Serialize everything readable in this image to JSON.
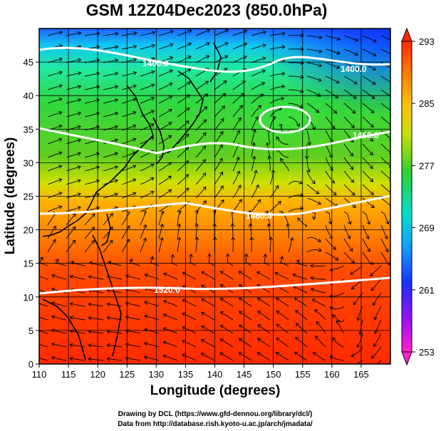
{
  "title": "GSM 12Z04Dec2023 (850.0hPa)",
  "x_axis": {
    "label": "Longitude (degrees)",
    "range": [
      110,
      170
    ],
    "ticks": [
      "110",
      "115",
      "120",
      "125",
      "130",
      "135",
      "140",
      "145",
      "150",
      "155",
      "160",
      "165"
    ]
  },
  "y_axis": {
    "label": "Latitude  (degrees)",
    "range": [
      0,
      50
    ],
    "ticks": [
      "0",
      "5",
      "10",
      "15",
      "20",
      "25",
      "30",
      "35",
      "40",
      "45"
    ]
  },
  "colorbar": {
    "range": [
      253,
      293
    ],
    "ticks": [
      "293",
      "285",
      "277",
      "269",
      "261",
      "253"
    ]
  },
  "contour_labels": [
    "1400.0",
    "1400.0",
    "1460.0",
    "1460.0",
    "1520.0"
  ],
  "credits": {
    "line1": "Drawing by DCL (https://www.gfd-dennou.org/library/dcl/)",
    "line2": "Data from http://database.rish.kyoto-u.ac.jp/arch/jmadata/"
  },
  "colors": {
    "warm": "#ff2a00",
    "green": "#22cc22",
    "cyan": "#00e0d0",
    "blue": "#1a3aff",
    "magenta": "#ff2ad0",
    "contour": "#ffffff",
    "coast": "#000000"
  },
  "chart_data": {
    "type": "heatmap",
    "title": "GSM 12Z04Dec2023 (850.0hPa)",
    "xlabel": "Longitude (degrees)",
    "ylabel": "Latitude  (degrees)",
    "xlim": [
      110,
      170
    ],
    "ylim": [
      0,
      50
    ],
    "colorbar_range": [
      253,
      293
    ],
    "colorbar_ticks": [
      293,
      285,
      277,
      269,
      261,
      253
    ],
    "grid": true,
    "overlays": [
      "streamlines",
      "geopotential height contours",
      "coastlines"
    ],
    "contours": [
      {
        "level": 1400.0,
        "label": "1400.0"
      },
      {
        "level": 1460.0,
        "label": "1460.0"
      },
      {
        "level": 1520.0,
        "label": "1520.0"
      }
    ]
  }
}
